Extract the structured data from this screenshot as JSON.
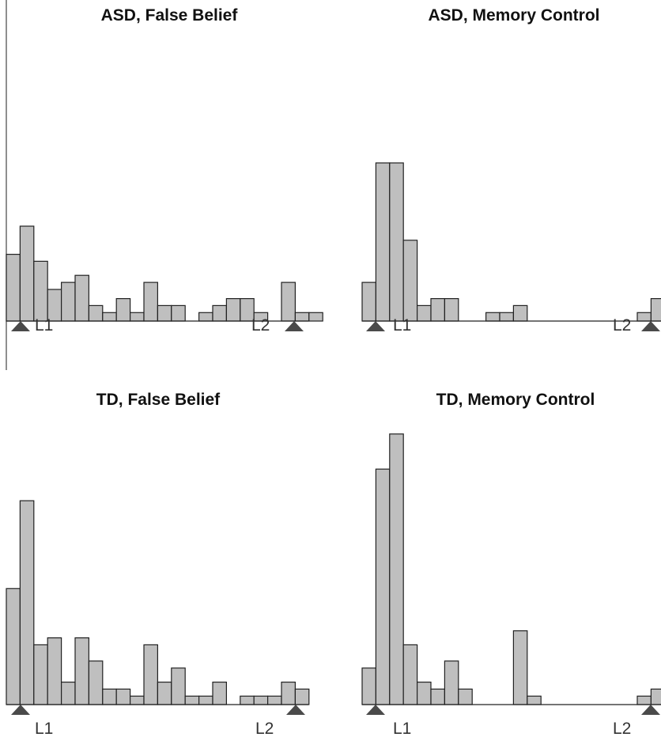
{
  "colors": {
    "bar_fill": "#bfbfbf",
    "bar_stroke": "#222222",
    "marker": "#4a4a4a"
  },
  "marker_icon": "triangle-up-icon",
  "chart_data": [
    {
      "type": "bar",
      "title": "ASD, False Belief",
      "start_label": "L1",
      "end_label": "L2",
      "values": [
        9.5,
        13.5,
        8.5,
        4.5,
        5.5,
        6.5,
        2.2,
        1.2,
        3.2,
        1.2,
        5.5,
        2.2,
        2.2,
        0,
        1.2,
        2.2,
        3.2,
        3.2,
        1.2,
        0,
        5.5,
        1.2,
        1.2
      ],
      "ylim": [
        0,
        45
      ],
      "grid": false,
      "legend": "none"
    },
    {
      "type": "bar",
      "title": "ASD, Memory Control",
      "start_label": "L1",
      "end_label": "L2",
      "values": [
        5.5,
        22.5,
        22.5,
        11.5,
        2.2,
        3.2,
        3.2,
        0,
        0,
        1.2,
        1.2,
        2.2,
        0,
        0,
        0,
        0,
        0,
        0,
        0,
        0,
        1.2,
        3.2
      ],
      "ylim": [
        0,
        45
      ],
      "grid": false,
      "legend": "none"
    },
    {
      "type": "bar",
      "title": "TD, False Belief",
      "start_label": "L1",
      "end_label": "L2",
      "values": [
        16.5,
        29,
        8.5,
        9.5,
        3.2,
        9.5,
        6.2,
        2.2,
        2.2,
        1.2,
        8.5,
        3.2,
        5.2,
        1.2,
        1.2,
        3.2,
        0,
        1.2,
        1.2,
        1.2,
        3.2,
        2.2
      ],
      "ylim": [
        0,
        45
      ],
      "grid": false,
      "legend": "none"
    },
    {
      "type": "bar",
      "title": "TD, Memory Control",
      "start_label": "L1",
      "end_label": "L2",
      "values": [
        5.2,
        33.5,
        38.5,
        8.5,
        3.2,
        2.2,
        6.2,
        2.2,
        0,
        0,
        0,
        10.5,
        1.2,
        0,
        0,
        0,
        0,
        0,
        0,
        0,
        1.2,
        2.2
      ],
      "ylim": [
        0,
        45
      ],
      "grid": false,
      "legend": "none"
    }
  ]
}
